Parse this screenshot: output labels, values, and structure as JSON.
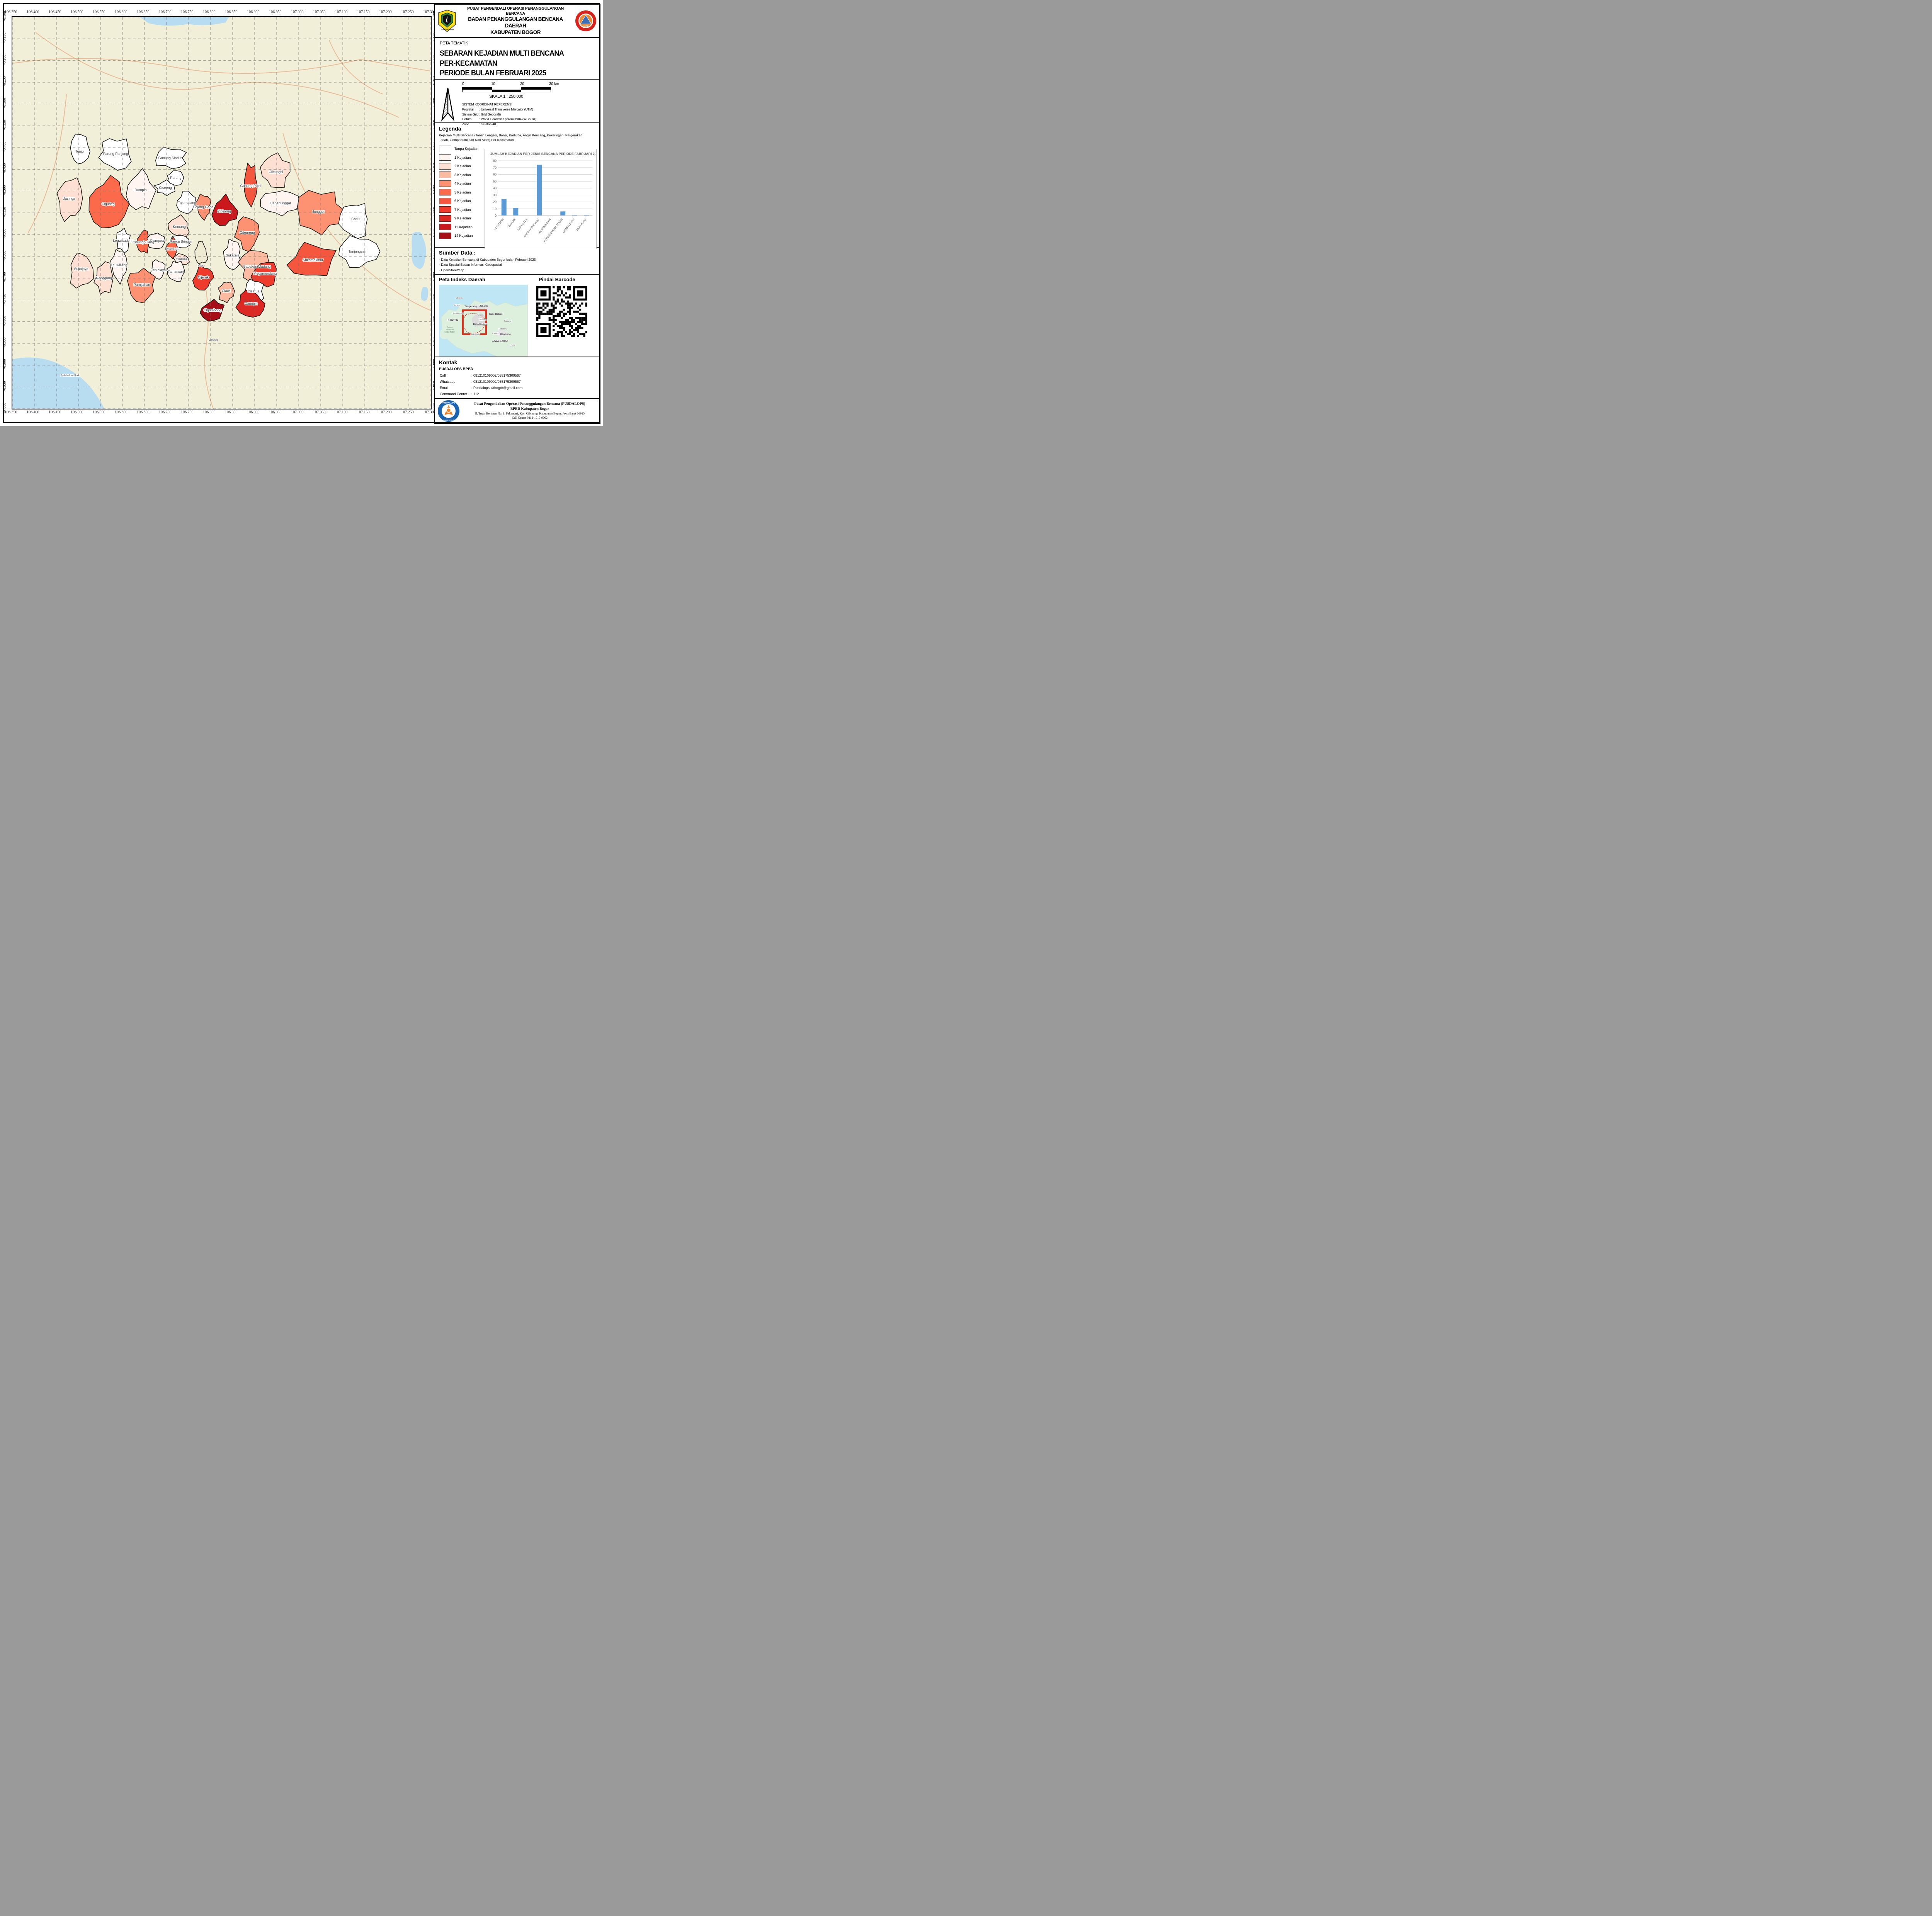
{
  "map": {
    "axis": {
      "lon_labels": [
        "106.350",
        "106.400",
        "106.450",
        "106.500",
        "106.550",
        "106.600",
        "106.650",
        "106.700",
        "106.750",
        "106.800",
        "106.850",
        "106.900",
        "106.950",
        "107.000",
        "107.050",
        "107.100",
        "107.150",
        "107.200",
        "107.250",
        "107.300"
      ],
      "lat_labels": [
        "-6.100",
        "-6.150",
        "-6.200",
        "-6.250",
        "-6.300",
        "-6.350",
        "-6.400",
        "-6.450",
        "-6.500",
        "-6.550",
        "-6.600",
        "-6.650",
        "-6.700",
        "-6.750",
        "-6.800",
        "-6.850",
        "-6.900",
        "-6.950",
        "-7.000"
      ]
    },
    "class_colors": {
      "0": "#FFFFFF",
      "1": "#FFF5F0",
      "2": "#FEE0D2",
      "3": "#FCBBA1",
      "4": "#FC9272",
      "5": "#FB6A4A",
      "6": "#F4573E",
      "7": "#EF3B2C",
      "9": "#DC2924",
      "11": "#CB181D",
      "14": "#A50F15"
    },
    "kecamatan": [
      {
        "n": "Tenjo",
        "k": 0
      },
      {
        "n": "Parung Panjang",
        "k": 0
      },
      {
        "n": "Gunung Sindur",
        "k": 0
      },
      {
        "n": "Parung",
        "k": 0
      },
      {
        "n": "Ciseeng",
        "k": 0
      },
      {
        "n": "Gunung Putri",
        "k": 6
      },
      {
        "n": "Cileungsi",
        "k": 2
      },
      {
        "n": "Rumpin",
        "k": 1
      },
      {
        "n": "Tajurhalang",
        "k": 0
      },
      {
        "n": "Klapanunggal",
        "k": 1
      },
      {
        "n": "Jasinga",
        "k": 2
      },
      {
        "n": "Cigudeg",
        "k": 5
      },
      {
        "n": "Bojong Gede",
        "k": 4
      },
      {
        "n": "Cibinong",
        "k": 11
      },
      {
        "n": "Jonggol",
        "k": 4
      },
      {
        "n": "Cariu",
        "k": 0
      },
      {
        "n": "Kemang",
        "k": 2
      },
      {
        "n": "Ranca Bungur",
        "k": 0
      },
      {
        "n": "Citeureup",
        "k": 4
      },
      {
        "n": "Sukaraja",
        "k": 1
      },
      {
        "n": "Leuwisadeng",
        "k": 0
      },
      {
        "n": "Cibungbulang",
        "k": 5
      },
      {
        "n": "Ciampea",
        "k": 1
      },
      {
        "n": "Dramaga",
        "k": 5
      },
      {
        "n": "Ciomas",
        "k": 2
      },
      {
        "n": "Babakan Madang",
        "k": 3
      },
      {
        "n": "Sukamakmur",
        "k": 6
      },
      {
        "n": "Tanjungsari",
        "k": 0
      },
      {
        "n": "Sukajaya",
        "k": 2
      },
      {
        "n": "Leuwiliang",
        "k": 1
      },
      {
        "n": "Nanggung",
        "k": 2
      },
      {
        "n": "Tenjolaya",
        "k": 1
      },
      {
        "n": "Tamansari",
        "k": 1
      },
      {
        "n": "Pamijahan",
        "k": 4
      },
      {
        "n": "Cijeruk",
        "k": 7
      },
      {
        "n": "Ciawi",
        "k": 3
      },
      {
        "n": "Megamendung",
        "k": 7
      },
      {
        "n": "Cisarua",
        "k": 0
      },
      {
        "n": "Caringin",
        "k": 9
      },
      {
        "n": "Cigombong",
        "k": 14
      }
    ],
    "base_labels": [
      "Bogor",
      "Cicurug",
      "Pelabuhan Ratu"
    ]
  },
  "chart_data": {
    "type": "bar",
    "title": "JUMLAH KEJADIAN PER JENIS BENCANA PERIODE FABRUARI 2025",
    "categories": [
      "LONGSOR",
      "BANJIR",
      "KARHUTLA",
      "ANGIN KENCANG",
      "KEKERINGAN",
      "PERGERAKAN TANAH",
      "GEMPA BUMI",
      "NON ALAM"
    ],
    "values": [
      24,
      11,
      0,
      74,
      0,
      6,
      1,
      1
    ],
    "xlabel": "",
    "ylabel": "",
    "ylim": [
      0,
      80
    ],
    "yticks": [
      0,
      10,
      20,
      30,
      40,
      50,
      60,
      70,
      80
    ],
    "grid": true,
    "legend_position": "none",
    "bar_color": "#5B9BD5"
  },
  "panel": {
    "header": {
      "line1": "PUSAT PENGENDALI OPERASI PENANGGULANGAN BENCANA",
      "line2": "BADAN PENANGGULANGAN BENCANA DAERAH",
      "line3": "KABUPATEN BOGOR",
      "logo_left_caption": "TEGAR BERIMAN",
      "logo_right_text": "BPBD",
      "logo_right_caption": "KABUPATEN BOGOR"
    },
    "title": {
      "kicker": "PETA TEMATIK",
      "t1": "SEBARAN KEJADIAN MULTI BENCANA",
      "t2": "PER-KECAMATAN",
      "t3": "PERIODE BULAN FEBRUARI 2025"
    },
    "scale": {
      "ticks": [
        "0",
        "10",
        "20",
        "30 km"
      ],
      "skala": "SKALA 1 : 250.000",
      "crs_title": "SISTEM KOORDINAT REFERENSI",
      "crs_rows": [
        [
          "Proyeksi",
          ": Universal Transverse Mercator (UTM)"
        ],
        [
          "Sistem Grid",
          ": Grid Geografis"
        ],
        [
          "Datum",
          ": World Geodetic System 1984 (WGS 84)"
        ],
        [
          "Zona",
          ": Selatan 48"
        ]
      ]
    },
    "legend": {
      "title": "Legenda",
      "desc": "Kejadian Multi Bencana (Tanah Longsor, Banjir, Karhutla, Angin Kencang, Kekeringan, Pergerakan Tanah, Gempabumi dan Non Alam) Per Kecamatan",
      "items": [
        {
          "label": "Tanpa Kejadian",
          "k": 0
        },
        {
          "label": "1 Kejadian",
          "k": 1
        },
        {
          "label": "2 Kejadian",
          "k": 2
        },
        {
          "label": "3 Kejadian",
          "k": 3
        },
        {
          "label": "4 Kejadian",
          "k": 4
        },
        {
          "label": "5 Kejadian",
          "k": 5
        },
        {
          "label": "6 Kejadian",
          "k": 6
        },
        {
          "label": "7 Kejadian",
          "k": 7
        },
        {
          "label": "9 Kejadian",
          "k": 9
        },
        {
          "label": "11 Kejadian",
          "k": 11
        },
        {
          "label": "14 Kejadian",
          "k": 14
        }
      ]
    },
    "sumber": {
      "title": "Sumber Data :",
      "items": [
        "- Data Kejadian Bencana di Kabupaten Bogor bulan Februari 2025",
        "- Data Spasial Badan Informasi Geospasial",
        "- OpenStreetMap"
      ]
    },
    "indeks": {
      "title": "Peta Indeks Daerah",
      "barcode_title": "Pindai Barcode",
      "inset_labels": [
        "Cilegon",
        "Serang",
        "Tangerang",
        "Jakarta",
        "Pandeglang",
        "BANTEN",
        "Depok",
        "Kab. Bekasi",
        "Cibinong",
        "Kota Bogor",
        "Subang",
        "Lembang",
        "Cimahi",
        "Bandung",
        "Sukabumi",
        "JAWA BARAT",
        "Garut",
        "Taman Nasional Ujung Kulon"
      ]
    },
    "kontak": {
      "title": "Kontak",
      "org": "PUSDALOPS BPBD",
      "rows": [
        [
          "Call",
          ": 081210109002/085175309567"
        ],
        [
          "Whatsapp",
          ": 081210109002/085175309567"
        ],
        [
          "Email",
          ": Pusdalops.kabogor@gmail.com"
        ],
        [
          "Command Center",
          ": 112"
        ]
      ]
    },
    "footer": {
      "l1": "Pusat Pengendalian Operasi Penanggulangan Bencana (PUSDALOPS)",
      "l2": "BPBD Kabupaten Bogor",
      "l3": "Jl. Tegar Beriman No. 1, Pakansari, Kec. Cibinong, Kabupaten Bogor, Jawa Barat 16915",
      "l4": "Call Center 0812-1010-9002",
      "logo_top": "PUSDALOPS",
      "logo_bottom": "BPBD KABUPATEN BOGOR"
    }
  }
}
